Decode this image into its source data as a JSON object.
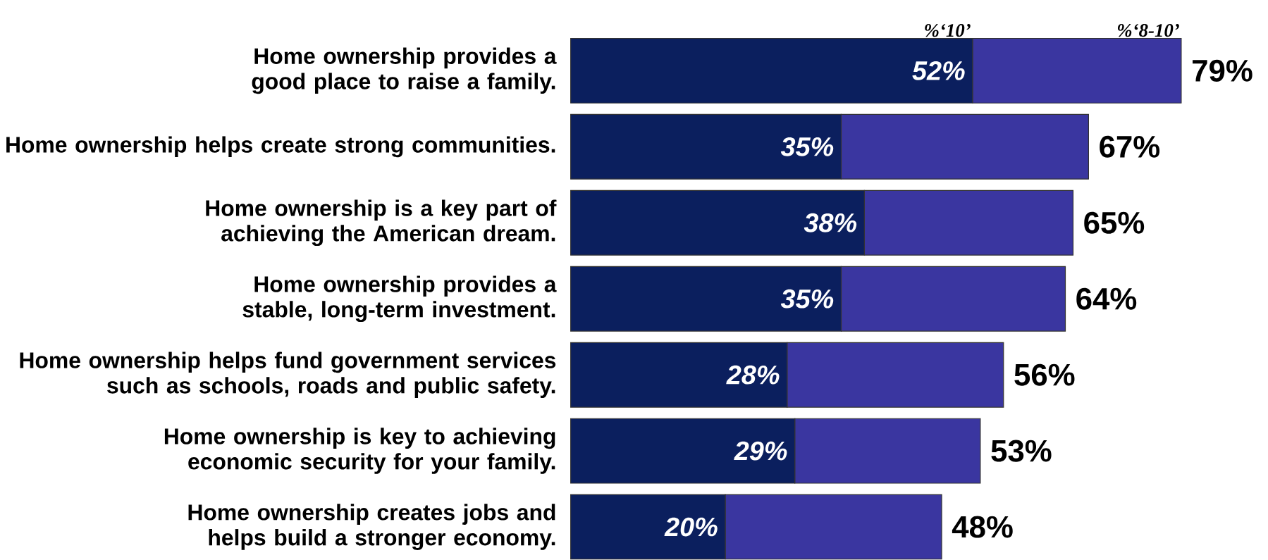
{
  "chart_data": {
    "type": "bar",
    "orientation": "horizontal",
    "stacked": true,
    "categories": [
      "Home ownership provides a good place to raise a family.",
      "Home ownership helps create strong communities.",
      "Home ownership is a key part of achieving the American dream.",
      "Home ownership provides a stable, long-term investment.",
      "Home ownership helps fund government services such as schools, roads and public safety.",
      "Home ownership is key to achieving economic security for your family.",
      "Home ownership creates jobs and helps build a stronger economy."
    ],
    "series": [
      {
        "name": "%‘10’",
        "color": "#0b1f5e",
        "values": [
          52,
          35,
          38,
          35,
          28,
          29,
          20
        ],
        "value_labels": [
          "52%",
          "35%",
          "38%",
          "35%",
          "28%",
          "29%",
          "20%"
        ]
      },
      {
        "name": "%‘8-10’",
        "color": "#3a36a0",
        "values": [
          27,
          32,
          27,
          29,
          28,
          24,
          28
        ]
      }
    ],
    "totals": [
      "79%",
      "67%",
      "65%",
      "64%",
      "56%",
      "53%",
      "48%"
    ]
  }
}
